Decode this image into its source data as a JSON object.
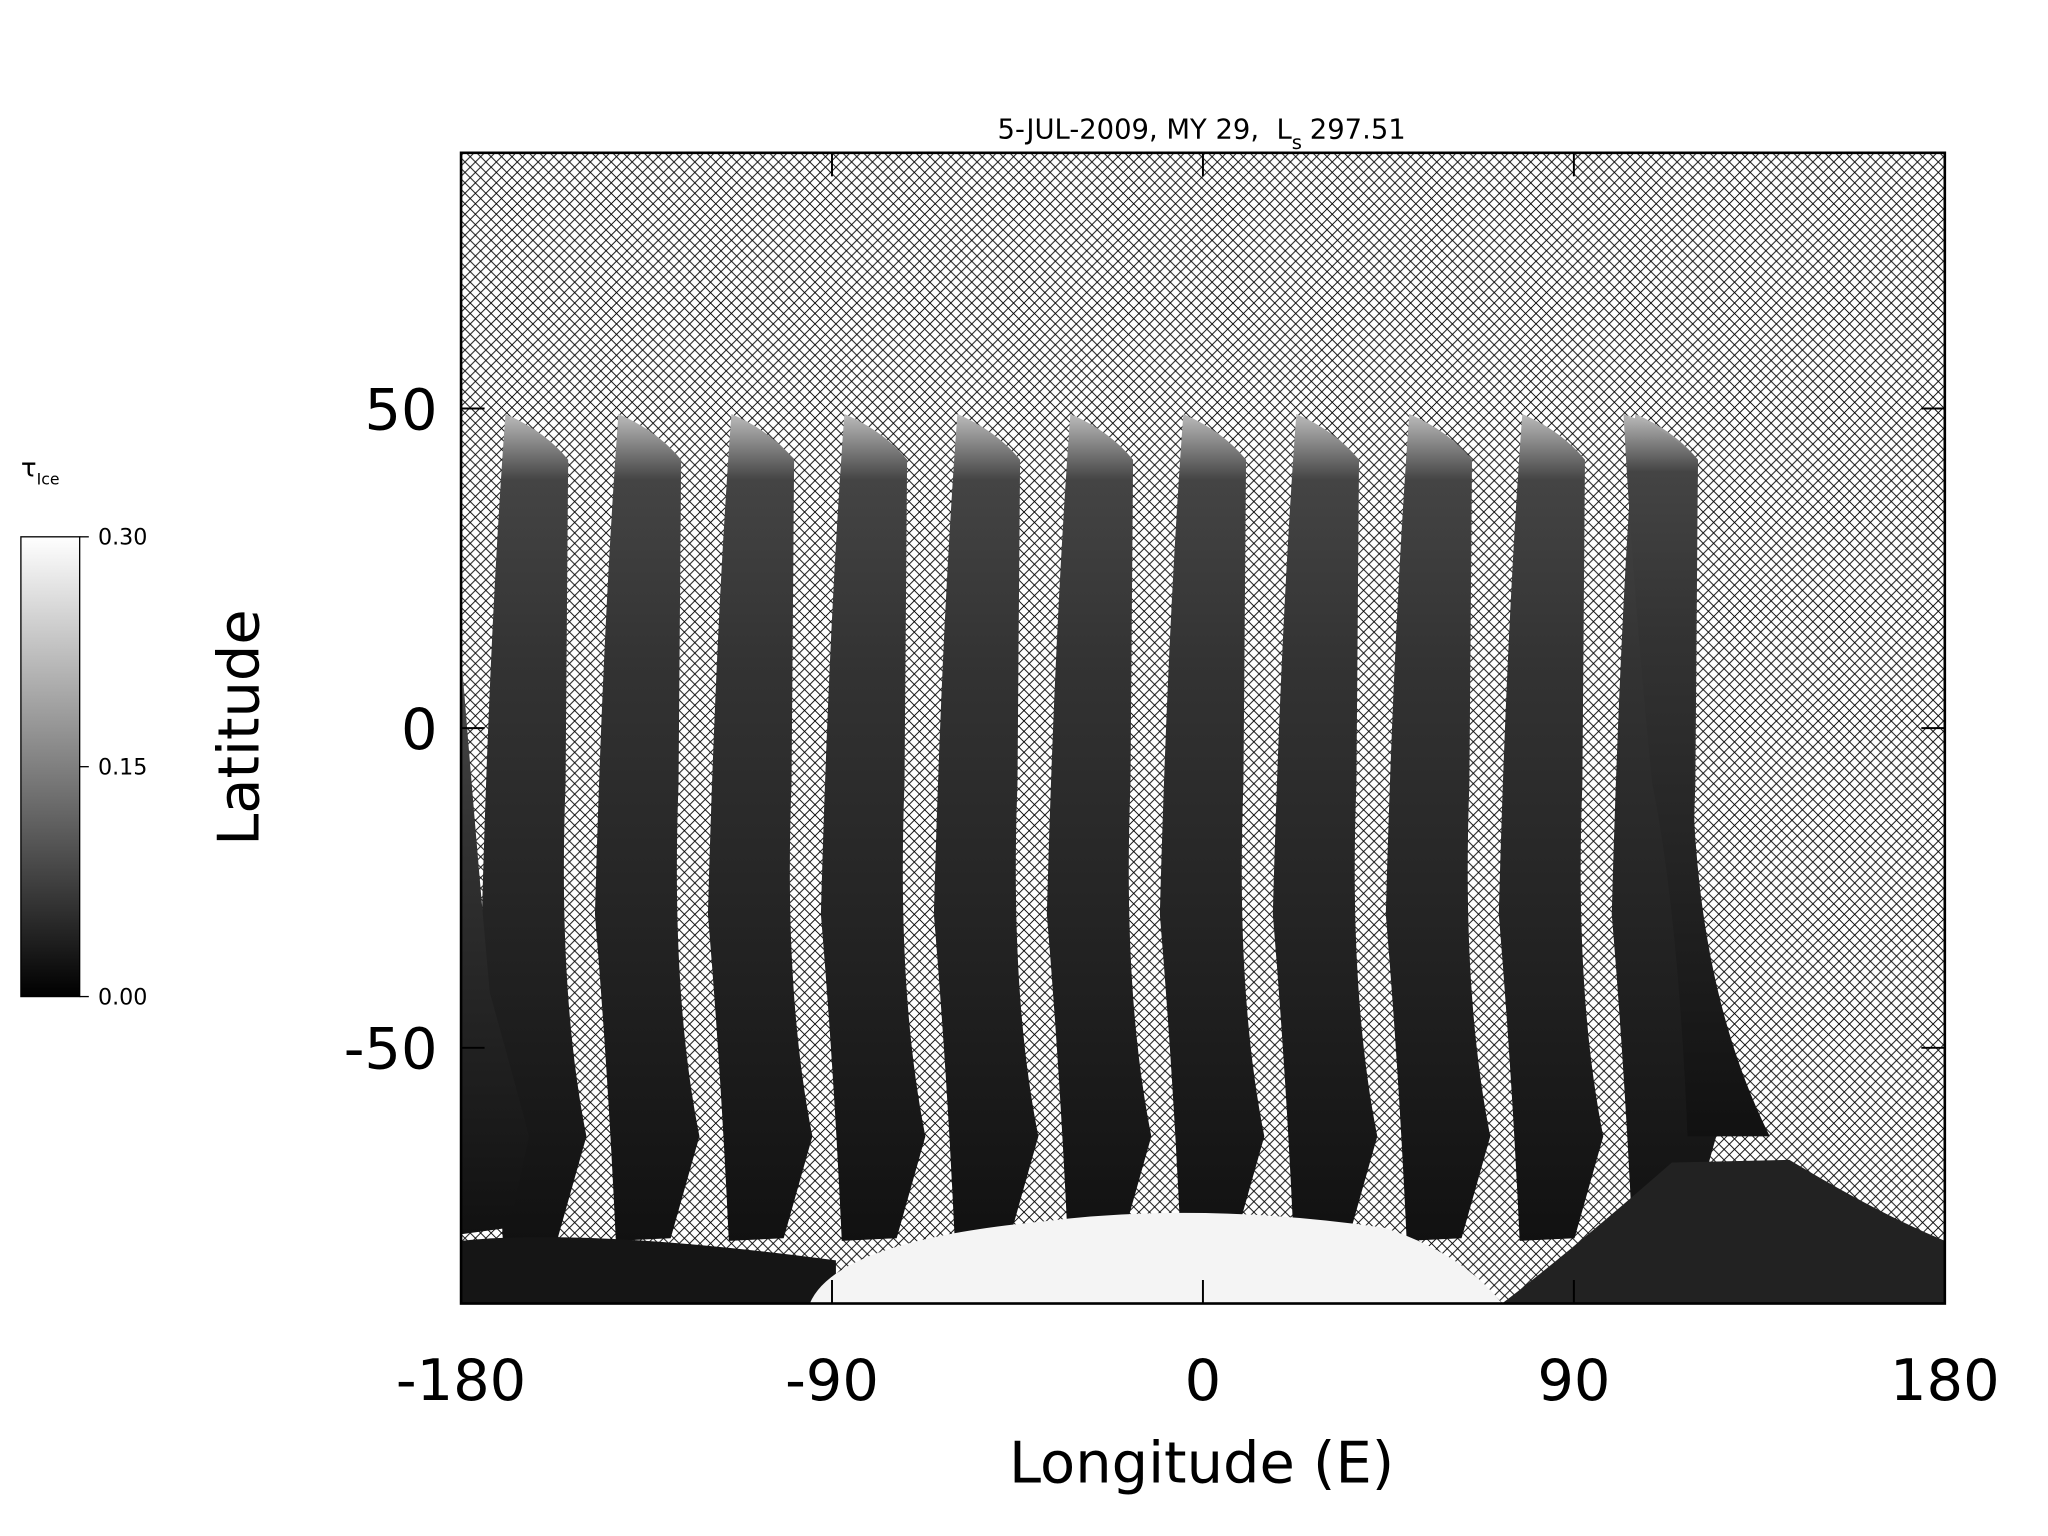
{
  "chart_data": {
    "type": "map",
    "title": "5-JUL-2009, MY 29,  L",
    "title_subscript": "s",
    "title_value": "297.51",
    "xlabel": "Longitude (E)",
    "ylabel": "Latitude",
    "xlim": [
      -180,
      180
    ],
    "xticks": [
      -180,
      -90,
      0,
      90,
      180
    ],
    "ylim": [
      -90,
      90
    ],
    "yticks": [
      -50,
      0,
      50
    ],
    "colorbar": {
      "label": "τ",
      "label_subscript": "Ice",
      "range": [
        0,
        0.3
      ],
      "ticks": [
        {
          "value": 0,
          "label": "0.00"
        },
        0.15,
        {
          "value": 0.3,
          "label": "0.30"
        }
      ]
    }
  }
}
